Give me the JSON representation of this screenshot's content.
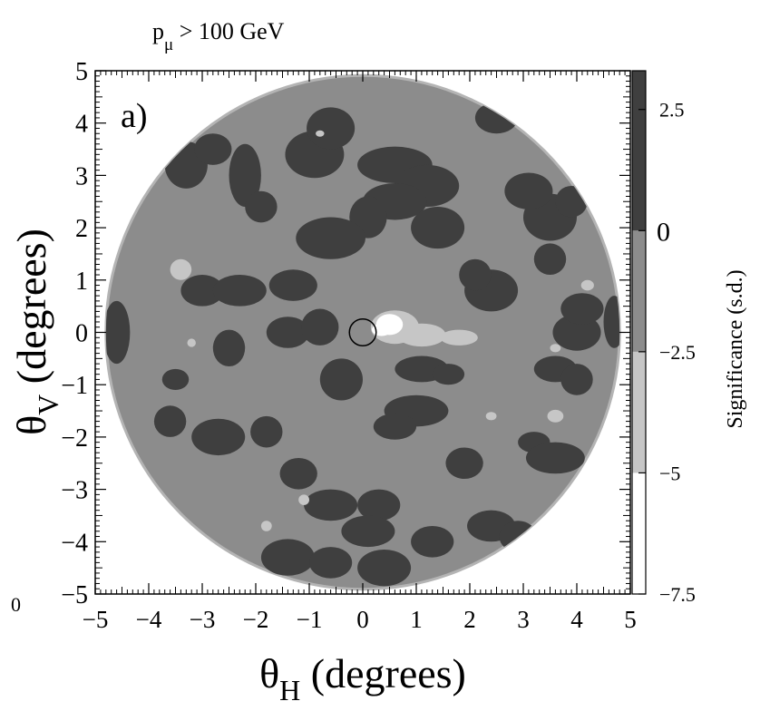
{
  "chart_data": {
    "type": "heatmap",
    "title": "",
    "cut_label": {
      "p": "p",
      "sub": "μ",
      "rest": " > 100 GeV"
    },
    "panel_label": "a)",
    "xlabel": {
      "theta": "θ",
      "sub": "H",
      "rest": " (degrees)"
    },
    "ylabel": {
      "theta": "θ",
      "sub": "V",
      "rest": " (degrees)"
    },
    "xlim": [
      -5,
      5
    ],
    "ylim": [
      -5,
      5
    ],
    "x_ticks": [
      -5,
      -4,
      -3,
      -2,
      -1,
      0,
      1,
      2,
      3,
      4,
      5
    ],
    "y_ticks": [
      -5,
      -4,
      -3,
      -2,
      -1,
      0,
      1,
      2,
      3,
      4,
      5
    ],
    "x_tick_labels": [
      "−5",
      "−4",
      "−3",
      "−2",
      "−1",
      "0",
      "1",
      "2",
      "3",
      "4",
      "5"
    ],
    "y_tick_labels": [
      "−5",
      "−4",
      "−3",
      "−2",
      "−1",
      "0",
      "1",
      "2",
      "3",
      "4",
      "5"
    ],
    "corner_label": "0",
    "colorbar": {
      "label": "Significance (s.d.)",
      "range": [
        -7.5,
        3.3
      ],
      "ticks": [
        2.5,
        0,
        -2.5,
        -5,
        -7.5
      ],
      "tick_labels": [
        "2.5",
        "0",
        "−2.5",
        "−5",
        "−7.5"
      ],
      "levels": [
        {
          "min": -7.5,
          "max": -5.0,
          "color": "#ffffff"
        },
        {
          "min": -5.0,
          "max": -2.5,
          "color": "#c6c6c6"
        },
        {
          "min": -2.5,
          "max": 0.0,
          "color": "#8c8c8c"
        },
        {
          "min": 0.0,
          "max": 3.3,
          "color": "#3f3f3f"
        }
      ]
    },
    "field_of_view_radius_deg": 4.8,
    "marker": {
      "type": "circle",
      "x": 0.0,
      "y": 0.0,
      "radius_deg": 0.25
    },
    "background_level_color": "#8c8c8c",
    "regions": [
      {
        "level": 3,
        "cx": 4.0,
        "cy": 0.0,
        "rx": 0.45,
        "ry": 0.35
      },
      {
        "level": 3,
        "cx": 4.1,
        "cy": 0.45,
        "rx": 0.4,
        "ry": 0.3
      },
      {
        "level": 3,
        "cx": -4.6,
        "cy": 0.0,
        "rx": 0.25,
        "ry": 0.6
      },
      {
        "level": 3,
        "cx": 4.7,
        "cy": 0.2,
        "rx": 0.2,
        "ry": 0.5
      },
      {
        "level": 3,
        "cx": -3.3,
        "cy": 3.2,
        "rx": 0.4,
        "ry": 0.45
      },
      {
        "level": 3,
        "cx": -2.8,
        "cy": 3.5,
        "rx": 0.35,
        "ry": 0.3
      },
      {
        "level": 3,
        "cx": -2.2,
        "cy": 3.0,
        "rx": 0.3,
        "ry": 0.6
      },
      {
        "level": 3,
        "cx": -1.9,
        "cy": 2.4,
        "rx": 0.3,
        "ry": 0.3
      },
      {
        "level": 3,
        "cx": -0.9,
        "cy": 3.4,
        "rx": 0.55,
        "ry": 0.45
      },
      {
        "level": 3,
        "cx": -0.6,
        "cy": 3.9,
        "rx": 0.45,
        "ry": 0.4
      },
      {
        "level": 3,
        "cx": 0.6,
        "cy": 3.2,
        "rx": 0.7,
        "ry": 0.35
      },
      {
        "level": 3,
        "cx": 1.2,
        "cy": 2.8,
        "rx": 0.6,
        "ry": 0.4
      },
      {
        "level": 3,
        "cx": 0.6,
        "cy": 2.5,
        "rx": 0.6,
        "ry": 0.35
      },
      {
        "level": 3,
        "cx": 0.1,
        "cy": 2.2,
        "rx": 0.35,
        "ry": 0.4
      },
      {
        "level": 3,
        "cx": -0.6,
        "cy": 1.8,
        "rx": 0.65,
        "ry": 0.4
      },
      {
        "level": 3,
        "cx": 1.4,
        "cy": 2.0,
        "rx": 0.5,
        "ry": 0.4
      },
      {
        "level": 3,
        "cx": 2.5,
        "cy": 4.1,
        "rx": 0.4,
        "ry": 0.3
      },
      {
        "level": 3,
        "cx": 3.5,
        "cy": 2.2,
        "rx": 0.5,
        "ry": 0.45
      },
      {
        "level": 3,
        "cx": 3.1,
        "cy": 2.7,
        "rx": 0.45,
        "ry": 0.35
      },
      {
        "level": 3,
        "cx": 3.9,
        "cy": 2.5,
        "rx": 0.3,
        "ry": 0.3
      },
      {
        "level": 3,
        "cx": 3.5,
        "cy": 1.4,
        "rx": 0.3,
        "ry": 0.3
      },
      {
        "level": 3,
        "cx": 2.4,
        "cy": 0.8,
        "rx": 0.5,
        "ry": 0.4
      },
      {
        "level": 3,
        "cx": 2.1,
        "cy": 1.1,
        "rx": 0.3,
        "ry": 0.3
      },
      {
        "level": 3,
        "cx": -3.0,
        "cy": 0.8,
        "rx": 0.4,
        "ry": 0.3
      },
      {
        "level": 3,
        "cx": -2.3,
        "cy": 0.8,
        "rx": 0.5,
        "ry": 0.3
      },
      {
        "level": 3,
        "cx": -1.3,
        "cy": 0.9,
        "rx": 0.45,
        "ry": 0.3
      },
      {
        "level": 3,
        "cx": -1.4,
        "cy": 0.0,
        "rx": 0.4,
        "ry": 0.3
      },
      {
        "level": 3,
        "cx": -0.8,
        "cy": 0.1,
        "rx": 0.35,
        "ry": 0.35
      },
      {
        "level": 3,
        "cx": -2.5,
        "cy": -0.3,
        "rx": 0.3,
        "ry": 0.35
      },
      {
        "level": 3,
        "cx": -0.4,
        "cy": -0.9,
        "rx": 0.4,
        "ry": 0.4
      },
      {
        "level": 3,
        "cx": 1.1,
        "cy": -0.7,
        "rx": 0.5,
        "ry": 0.25
      },
      {
        "level": 3,
        "cx": 1.6,
        "cy": -0.8,
        "rx": 0.3,
        "ry": 0.2
      },
      {
        "level": 3,
        "cx": 1.0,
        "cy": -1.5,
        "rx": 0.6,
        "ry": 0.3
      },
      {
        "level": 3,
        "cx": 0.6,
        "cy": -1.8,
        "rx": 0.4,
        "ry": 0.25
      },
      {
        "level": 3,
        "cx": 3.6,
        "cy": -0.7,
        "rx": 0.4,
        "ry": 0.25
      },
      {
        "level": 3,
        "cx": 4.0,
        "cy": -0.9,
        "rx": 0.3,
        "ry": 0.3
      },
      {
        "level": 3,
        "cx": -3.6,
        "cy": -1.7,
        "rx": 0.3,
        "ry": 0.3
      },
      {
        "level": 3,
        "cx": -2.7,
        "cy": -2.0,
        "rx": 0.5,
        "ry": 0.35
      },
      {
        "level": 3,
        "cx": -1.8,
        "cy": -1.9,
        "rx": 0.3,
        "ry": 0.3
      },
      {
        "level": 3,
        "cx": -1.2,
        "cy": -2.7,
        "rx": 0.35,
        "ry": 0.3
      },
      {
        "level": 3,
        "cx": 3.2,
        "cy": -2.1,
        "rx": 0.3,
        "ry": 0.2
      },
      {
        "level": 3,
        "cx": 3.6,
        "cy": -2.4,
        "rx": 0.55,
        "ry": 0.3
      },
      {
        "level": 3,
        "cx": 1.9,
        "cy": -2.5,
        "rx": 0.35,
        "ry": 0.3
      },
      {
        "level": 3,
        "cx": -0.6,
        "cy": -3.3,
        "rx": 0.5,
        "ry": 0.3
      },
      {
        "level": 3,
        "cx": 0.3,
        "cy": -3.3,
        "rx": 0.4,
        "ry": 0.3
      },
      {
        "level": 3,
        "cx": 0.1,
        "cy": -3.8,
        "rx": 0.5,
        "ry": 0.3
      },
      {
        "level": 3,
        "cx": -1.4,
        "cy": -4.3,
        "rx": 0.5,
        "ry": 0.35
      },
      {
        "level": 3,
        "cx": -0.6,
        "cy": -4.4,
        "rx": 0.4,
        "ry": 0.3
      },
      {
        "level": 3,
        "cx": 0.4,
        "cy": -4.5,
        "rx": 0.5,
        "ry": 0.35
      },
      {
        "level": 3,
        "cx": 1.3,
        "cy": -4.0,
        "rx": 0.4,
        "ry": 0.3
      },
      {
        "level": 3,
        "cx": 2.4,
        "cy": -3.7,
        "rx": 0.45,
        "ry": 0.3
      },
      {
        "level": 3,
        "cx": 2.9,
        "cy": -3.9,
        "rx": 0.35,
        "ry": 0.3
      },
      {
        "level": 3,
        "cx": -3.5,
        "cy": -0.9,
        "rx": 0.25,
        "ry": 0.2
      },
      {
        "level": 1,
        "cx": 0.6,
        "cy": 0.1,
        "rx": 0.45,
        "ry": 0.32
      },
      {
        "level": 1,
        "cx": 1.1,
        "cy": -0.05,
        "rx": 0.45,
        "ry": 0.22
      },
      {
        "level": 1,
        "cx": 1.8,
        "cy": -0.1,
        "rx": 0.35,
        "ry": 0.15
      },
      {
        "level": 1,
        "cx": -3.4,
        "cy": 1.2,
        "rx": 0.2,
        "ry": 0.2
      },
      {
        "level": 1,
        "cx": 3.6,
        "cy": -1.6,
        "rx": 0.15,
        "ry": 0.12
      },
      {
        "level": 1,
        "cx": -1.8,
        "cy": -3.7,
        "rx": 0.1,
        "ry": 0.1
      },
      {
        "level": 1,
        "cx": -1.1,
        "cy": -3.2,
        "rx": 0.1,
        "ry": 0.1
      },
      {
        "level": 1,
        "cx": -3.2,
        "cy": -0.2,
        "rx": 0.08,
        "ry": 0.08
      },
      {
        "level": 1,
        "cx": 3.6,
        "cy": -0.3,
        "rx": 0.1,
        "ry": 0.08
      },
      {
        "level": 1,
        "cx": 4.2,
        "cy": 0.9,
        "rx": 0.12,
        "ry": 0.1
      },
      {
        "level": 1,
        "cx": 2.4,
        "cy": -1.6,
        "rx": 0.1,
        "ry": 0.08
      },
      {
        "level": 1,
        "cx": -0.8,
        "cy": 3.8,
        "rx": 0.08,
        "ry": 0.06
      },
      {
        "level": 0,
        "cx": 0.5,
        "cy": 0.15,
        "rx": 0.25,
        "ry": 0.2
      },
      {
        "level": 0,
        "cx": 0.35,
        "cy": 0.05,
        "rx": 0.18,
        "ry": 0.12
      }
    ]
  }
}
